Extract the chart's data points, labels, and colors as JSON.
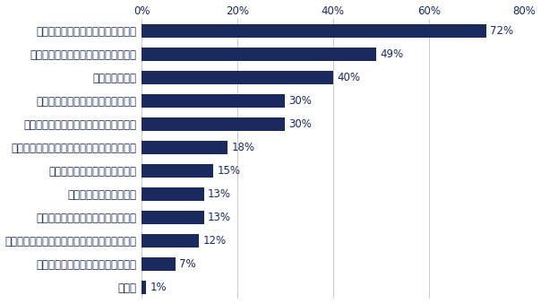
{
  "categories": [
    "その他",
    "異なる視点からのアイディア創出力",
    "異なる背景を持つ方とのコミュニケーション力",
    "新しい業務・商習慣などへの適応力",
    "グローバル展開への対応",
    "慣習にとらわれない柔軟な思考",
    "新しい知識・スキルを獲得しようとする姿勢",
    "経験業種でのスキル・ノウハウの汎用化",
    "経験業種での専門知識・専門スキル",
    "マネジメント力",
    "新しい環境でも主体的に動ける行動力",
    "経験職種での専門知識・専門スキル"
  ],
  "values": [
    1,
    7,
    12,
    13,
    13,
    15,
    18,
    30,
    30,
    40,
    49,
    72
  ],
  "bar_color": "#1a2a5e",
  "label_color": "#1a2a5e",
  "pct_color": "#1a2a5e",
  "background_color": "#ffffff",
  "xlim": [
    0,
    80
  ],
  "xtick_values": [
    0,
    20,
    40,
    60,
    80
  ],
  "xtick_labels": [
    "0%",
    "20%",
    "40%",
    "60%",
    "80%"
  ],
  "bar_height": 0.6,
  "label_fontsize": 8.5,
  "value_fontsize": 8.5,
  "tick_fontsize": 8.5
}
